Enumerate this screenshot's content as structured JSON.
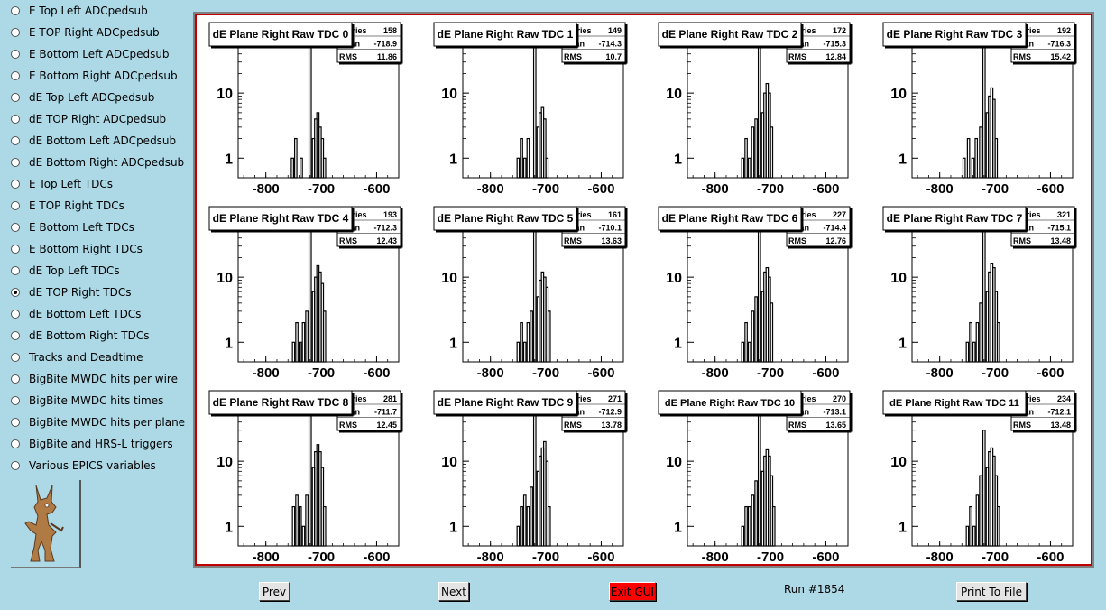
{
  "sidebar": {
    "items": [
      {
        "label": "E Top Left ADCpedsub",
        "checked": false
      },
      {
        "label": "E TOP Right ADCpedsub",
        "checked": false
      },
      {
        "label": "E Bottom Left ADCpedsub",
        "checked": false
      },
      {
        "label": "E Bottom Right ADCpedsub",
        "checked": false
      },
      {
        "label": "dE Top Left ADCpedsub",
        "checked": false
      },
      {
        "label": "dE TOP Right ADCpedsub",
        "checked": false
      },
      {
        "label": "dE Bottom Left ADCpedsub",
        "checked": false
      },
      {
        "label": "dE Bottom Right ADCpedsub",
        "checked": false
      },
      {
        "label": "E Top Left TDCs",
        "checked": false
      },
      {
        "label": "E TOP Right TDCs",
        "checked": false
      },
      {
        "label": "E Bottom Left TDCs",
        "checked": false
      },
      {
        "label": "E Bottom Right TDCs",
        "checked": false
      },
      {
        "label": "dE Top Left TDCs",
        "checked": false
      },
      {
        "label": "dE TOP Right TDCs",
        "checked": true
      },
      {
        "label": "dE Bottom Left TDCs",
        "checked": false
      },
      {
        "label": "dE Bottom Right TDCs",
        "checked": false
      },
      {
        "label": "Tracks and Deadtime",
        "checked": false
      },
      {
        "label": "BigBite MWDC hits per wire",
        "checked": false
      },
      {
        "label": "BigBite MWDC hits times",
        "checked": false
      },
      {
        "label": "BigBite MWDC hits per plane",
        "checked": false
      },
      {
        "label": "BigBite and HRS-L triggers",
        "checked": false
      },
      {
        "label": "Various EPICS variables",
        "checked": false
      }
    ],
    "logo_icon": "coyote-logo-icon"
  },
  "toolbar": {
    "prev_label": "Prev",
    "next_label": "Next",
    "exit_label": "Exit GUI",
    "run_label": "Run #1854",
    "print_label": "Print To File"
  },
  "stats_labels": {
    "entries": "Entries",
    "mean": "Mean",
    "rms": "RMS"
  },
  "colors": {
    "background": "#add8e6",
    "canvas_border": "#c00000",
    "exit_button": "#ff0000"
  },
  "chart_data": [
    {
      "type": "bar",
      "title": "dE Plane Right Raw TDC 0",
      "entries": "158",
      "mean": "-718.9",
      "rms": "11.86",
      "xlim": [
        -850,
        -560
      ],
      "ylim": [
        0.5,
        60
      ],
      "log_y": true,
      "x_ticks": [
        -800,
        -700,
        -600
      ],
      "x_tick_labels": [
        "-800",
        "-700",
        "-600"
      ],
      "y_ticks": [
        1,
        10
      ],
      "y_tick_labels": [
        "1",
        "10"
      ],
      "bins": [
        [
          -754,
          1
        ],
        [
          -748,
          2
        ],
        [
          -738,
          1
        ],
        [
          -722,
          65
        ],
        [
          -716,
          2
        ],
        [
          -712,
          4
        ],
        [
          -708,
          5
        ],
        [
          -704,
          3
        ],
        [
          -700,
          2
        ],
        [
          -696,
          1
        ]
      ]
    },
    {
      "type": "bar",
      "title": "dE Plane Right Raw TDC 1",
      "entries": "149",
      "mean": "-714.3",
      "rms": "10.7",
      "xlim": [
        -850,
        -560
      ],
      "ylim": [
        0.5,
        60
      ],
      "log_y": true,
      "x_ticks": [
        -800,
        -700,
        -600
      ],
      "x_tick_labels": [
        "-800",
        "-700",
        "-600"
      ],
      "y_ticks": [
        1,
        10
      ],
      "y_tick_labels": [
        "1",
        "10"
      ],
      "bins": [
        [
          -752,
          1
        ],
        [
          -746,
          2
        ],
        [
          -740,
          1
        ],
        [
          -734,
          2
        ],
        [
          -722,
          70
        ],
        [
          -716,
          3
        ],
        [
          -712,
          5
        ],
        [
          -708,
          6
        ],
        [
          -704,
          4
        ],
        [
          -700,
          1
        ]
      ]
    },
    {
      "type": "bar",
      "title": "dE Plane Right Raw TDC 2",
      "entries": "172",
      "mean": "-715.3",
      "rms": "12.84",
      "xlim": [
        -850,
        -560
      ],
      "ylim": [
        0.5,
        60
      ],
      "log_y": true,
      "x_ticks": [
        -800,
        -700,
        -600
      ],
      "x_tick_labels": [
        "-800",
        "-700",
        "-600"
      ],
      "y_ticks": [
        1,
        10
      ],
      "y_tick_labels": [
        "1",
        "10"
      ],
      "bins": [
        [
          -752,
          1
        ],
        [
          -746,
          2
        ],
        [
          -740,
          1
        ],
        [
          -734,
          3
        ],
        [
          -728,
          4
        ],
        [
          -722,
          65
        ],
        [
          -716,
          5
        ],
        [
          -712,
          10
        ],
        [
          -708,
          14
        ],
        [
          -704,
          10
        ],
        [
          -700,
          3
        ]
      ]
    },
    {
      "type": "bar",
      "title": "dE Plane Right Raw TDC 3",
      "entries": "192",
      "mean": "-716.3",
      "rms": "15.42",
      "xlim": [
        -850,
        -560
      ],
      "ylim": [
        0.5,
        60
      ],
      "log_y": true,
      "x_ticks": [
        -800,
        -700,
        -600
      ],
      "x_tick_labels": [
        "-800",
        "-700",
        "-600"
      ],
      "y_ticks": [
        1,
        10
      ],
      "y_tick_labels": [
        "1",
        "10"
      ],
      "bins": [
        [
          -758,
          1
        ],
        [
          -750,
          2
        ],
        [
          -742,
          1
        ],
        [
          -736,
          2
        ],
        [
          -728,
          3
        ],
        [
          -722,
          75
        ],
        [
          -716,
          5
        ],
        [
          -712,
          9
        ],
        [
          -708,
          12
        ],
        [
          -704,
          8
        ],
        [
          -700,
          2
        ]
      ]
    },
    {
      "type": "bar",
      "title": "dE Plane Right Raw TDC 4",
      "entries": "193",
      "mean": "-712.3",
      "rms": "12.43",
      "xlim": [
        -850,
        -560
      ],
      "ylim": [
        0.5,
        60
      ],
      "log_y": true,
      "x_ticks": [
        -800,
        -700,
        -600
      ],
      "x_tick_labels": [
        "-800",
        "-700",
        "-600"
      ],
      "y_ticks": [
        1,
        10
      ],
      "y_tick_labels": [
        "1",
        "10"
      ],
      "bins": [
        [
          -752,
          1
        ],
        [
          -746,
          2
        ],
        [
          -740,
          1
        ],
        [
          -734,
          2
        ],
        [
          -728,
          3
        ],
        [
          -722,
          60
        ],
        [
          -716,
          6
        ],
        [
          -712,
          10
        ],
        [
          -708,
          15
        ],
        [
          -704,
          12
        ],
        [
          -700,
          8
        ],
        [
          -696,
          3
        ]
      ]
    },
    {
      "type": "bar",
      "title": "dE Plane Right Raw TDC 5",
      "entries": "161",
      "mean": "-710.1",
      "rms": "13.63",
      "xlim": [
        -850,
        -560
      ],
      "ylim": [
        0.5,
        60
      ],
      "log_y": true,
      "x_ticks": [
        -800,
        -700,
        -600
      ],
      "x_tick_labels": [
        "-800",
        "-700",
        "-600"
      ],
      "y_ticks": [
        1,
        10
      ],
      "y_tick_labels": [
        "1",
        "10"
      ],
      "bins": [
        [
          -752,
          1
        ],
        [
          -746,
          2
        ],
        [
          -740,
          1
        ],
        [
          -734,
          2
        ],
        [
          -728,
          3
        ],
        [
          -722,
          50
        ],
        [
          -716,
          5
        ],
        [
          -712,
          9
        ],
        [
          -708,
          12
        ],
        [
          -704,
          10
        ],
        [
          -700,
          7
        ],
        [
          -696,
          3
        ]
      ]
    },
    {
      "type": "bar",
      "title": "dE Plane Right Raw TDC 6",
      "entries": "227",
      "mean": "-714.4",
      "rms": "12.76",
      "xlim": [
        -850,
        -560
      ],
      "ylim": [
        0.5,
        60
      ],
      "log_y": true,
      "x_ticks": [
        -800,
        -700,
        -600
      ],
      "x_tick_labels": [
        "-800",
        "-700",
        "-600"
      ],
      "y_ticks": [
        1,
        10
      ],
      "y_tick_labels": [
        "1",
        "10"
      ],
      "bins": [
        [
          -752,
          1
        ],
        [
          -746,
          2
        ],
        [
          -740,
          1
        ],
        [
          -734,
          3
        ],
        [
          -728,
          5
        ],
        [
          -722,
          65
        ],
        [
          -716,
          6
        ],
        [
          -712,
          12
        ],
        [
          -708,
          14
        ],
        [
          -704,
          10
        ],
        [
          -700,
          4
        ]
      ]
    },
    {
      "type": "bar",
      "title": "dE Plane Right Raw TDC 7",
      "entries": "321",
      "mean": "-715.1",
      "rms": "13.48",
      "xlim": [
        -850,
        -560
      ],
      "ylim": [
        0.5,
        60
      ],
      "log_y": true,
      "x_ticks": [
        -800,
        -700,
        -600
      ],
      "x_tick_labels": [
        "-800",
        "-700",
        "-600"
      ],
      "y_ticks": [
        1,
        10
      ],
      "y_tick_labels": [
        "1",
        "10"
      ],
      "bins": [
        [
          -752,
          1
        ],
        [
          -746,
          2
        ],
        [
          -740,
          1
        ],
        [
          -734,
          2
        ],
        [
          -728,
          4
        ],
        [
          -722,
          70
        ],
        [
          -716,
          6
        ],
        [
          -712,
          12
        ],
        [
          -708,
          16
        ],
        [
          -704,
          14
        ],
        [
          -700,
          6
        ],
        [
          -696,
          2
        ]
      ]
    },
    {
      "type": "bar",
      "title": "dE Plane Right Raw TDC 8",
      "entries": "281",
      "mean": "-711.7",
      "rms": "12.45",
      "xlim": [
        -850,
        -560
      ],
      "ylim": [
        0.5,
        60
      ],
      "log_y": true,
      "x_ticks": [
        -800,
        -700,
        -600
      ],
      "x_tick_labels": [
        "-800",
        "-700",
        "-600"
      ],
      "y_ticks": [
        1,
        10
      ],
      "y_tick_labels": [
        "1",
        "10"
      ],
      "bins": [
        [
          -752,
          2
        ],
        [
          -746,
          3
        ],
        [
          -740,
          2
        ],
        [
          -734,
          1
        ],
        [
          -728,
          3
        ],
        [
          -722,
          60
        ],
        [
          -716,
          8
        ],
        [
          -712,
          14
        ],
        [
          -708,
          18
        ],
        [
          -704,
          14
        ],
        [
          -700,
          8
        ],
        [
          -696,
          2
        ]
      ]
    },
    {
      "type": "bar",
      "title": "dE Plane Right Raw TDC 9",
      "entries": "271",
      "mean": "-712.9",
      "rms": "13.78",
      "xlim": [
        -850,
        -560
      ],
      "ylim": [
        0.5,
        60
      ],
      "log_y": true,
      "x_ticks": [
        -800,
        -700,
        -600
      ],
      "x_tick_labels": [
        "-800",
        "-700",
        "-600"
      ],
      "y_ticks": [
        1,
        10
      ],
      "y_tick_labels": [
        "1",
        "10"
      ],
      "bins": [
        [
          -752,
          1
        ],
        [
          -746,
          2
        ],
        [
          -740,
          3
        ],
        [
          -734,
          2
        ],
        [
          -728,
          4
        ],
        [
          -722,
          55
        ],
        [
          -716,
          7
        ],
        [
          -712,
          12
        ],
        [
          -708,
          16
        ],
        [
          -704,
          20
        ],
        [
          -700,
          10
        ],
        [
          -696,
          2
        ]
      ]
    },
    {
      "type": "bar",
      "title": "dE Plane Right Raw TDC 10",
      "entries": "270",
      "mean": "-713.1",
      "rms": "13.65",
      "xlim": [
        -850,
        -560
      ],
      "ylim": [
        0.5,
        60
      ],
      "log_y": true,
      "x_ticks": [
        -800,
        -700,
        -600
      ],
      "x_tick_labels": [
        "-800",
        "-700",
        "-600"
      ],
      "y_ticks": [
        1,
        10
      ],
      "y_tick_labels": [
        "1",
        "10"
      ],
      "bins": [
        [
          -752,
          1
        ],
        [
          -746,
          2
        ],
        [
          -740,
          2
        ],
        [
          -734,
          3
        ],
        [
          -728,
          5
        ],
        [
          -722,
          65
        ],
        [
          -716,
          7
        ],
        [
          -712,
          12
        ],
        [
          -708,
          15
        ],
        [
          -704,
          12
        ],
        [
          -700,
          6
        ],
        [
          -696,
          2
        ]
      ]
    },
    {
      "type": "bar",
      "title": "dE Plane Right Raw TDC 11",
      "entries": "234",
      "mean": "-712.1",
      "rms": "13.48",
      "xlim": [
        -850,
        -560
      ],
      "ylim": [
        0.5,
        60
      ],
      "log_y": true,
      "x_ticks": [
        -800,
        -700,
        -600
      ],
      "x_tick_labels": [
        "-800",
        "-700",
        "-600"
      ],
      "y_ticks": [
        1,
        10
      ],
      "y_tick_labels": [
        "1",
        "10"
      ],
      "bins": [
        [
          -752,
          1
        ],
        [
          -746,
          2
        ],
        [
          -740,
          1
        ],
        [
          -734,
          3
        ],
        [
          -728,
          6
        ],
        [
          -722,
          30
        ],
        [
          -716,
          8
        ],
        [
          -712,
          14
        ],
        [
          -708,
          16
        ],
        [
          -704,
          12
        ],
        [
          -700,
          6
        ],
        [
          -696,
          2
        ]
      ]
    }
  ]
}
